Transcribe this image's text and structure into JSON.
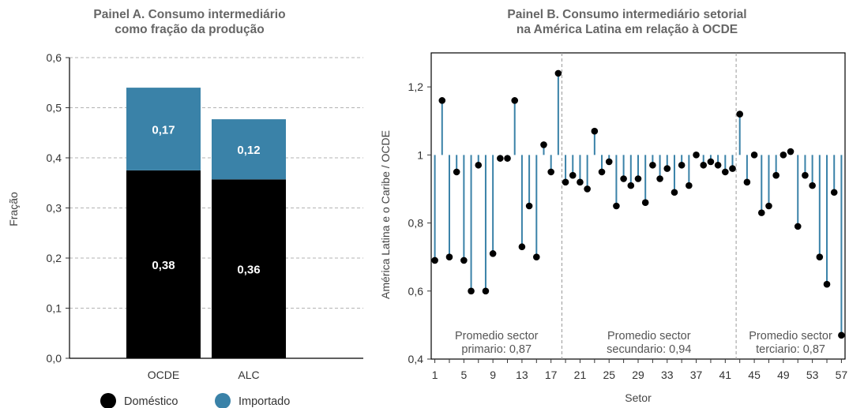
{
  "colors": {
    "domestic": "#000000",
    "imported": "#3a82a8",
    "stem": "#3a82a8",
    "grid": "#b3b3b3",
    "title": "#666666"
  },
  "chart_data": [
    {
      "type": "bar",
      "title": "Painel A. Consumo intermediário como fração da produção",
      "title_lines": [
        "Painel A. Consumo intermediário",
        "como fração da produção"
      ],
      "xlabel": "",
      "ylabel": "Fração",
      "ylim": [
        0,
        0.6
      ],
      "yticks": [
        "0,0",
        "0,1",
        "0,2",
        "0,3",
        "0,4",
        "0,5",
        "0,6"
      ],
      "stacked": true,
      "grid": true,
      "legend_position": "bottom",
      "categories": [
        "OCDE",
        "ALC"
      ],
      "series": [
        {
          "name": "Doméstico",
          "values": [
            0.375,
            0.357
          ],
          "labels": [
            "0,38",
            "0,36"
          ]
        },
        {
          "name": "Importado",
          "values": [
            0.165,
            0.12
          ],
          "labels": [
            "0,17",
            "0,12"
          ]
        }
      ]
    },
    {
      "type": "scatter",
      "style": "lollipop",
      "title": "Painel B. Consumo intermediário setorial na América Latina em relação à OCDE",
      "title_lines": [
        "Painel B. Consumo intermediário setorial",
        "na América Latina em relação à OCDE"
      ],
      "xlabel": "Setor",
      "ylabel": "América Latina e o Caribe / OCDE",
      "ylim": [
        0.4,
        1.3
      ],
      "xlim": [
        0.5,
        57.5
      ],
      "yticks": [
        "0,4",
        "0,6",
        "0,8",
        "1",
        "1,2"
      ],
      "xticks": [
        "1",
        "5",
        "9",
        "13",
        "17",
        "21",
        "25",
        "29",
        "33",
        "37",
        "41",
        "45",
        "49",
        "53",
        "57"
      ],
      "baseline": 1.0,
      "grid": false,
      "x": [
        1,
        2,
        3,
        4,
        5,
        6,
        7,
        8,
        9,
        10,
        11,
        12,
        13,
        14,
        15,
        16,
        17,
        18,
        19,
        20,
        21,
        22,
        23,
        24,
        25,
        26,
        27,
        28,
        29,
        30,
        31,
        32,
        33,
        34,
        35,
        36,
        37,
        38,
        39,
        40,
        41,
        42,
        43,
        44,
        45,
        46,
        47,
        48,
        49,
        50,
        51,
        52,
        53,
        54,
        55,
        56,
        57
      ],
      "values": [
        0.69,
        1.16,
        0.7,
        0.95,
        0.69,
        0.6,
        0.97,
        0.6,
        0.71,
        0.99,
        0.99,
        1.16,
        0.73,
        0.85,
        0.7,
        1.03,
        0.95,
        1.24,
        0.92,
        0.94,
        0.92,
        0.9,
        1.07,
        0.95,
        0.98,
        0.85,
        0.93,
        0.91,
        0.93,
        0.86,
        0.97,
        0.93,
        0.96,
        0.89,
        0.97,
        0.91,
        1.0,
        0.97,
        0.98,
        0.97,
        0.95,
        0.96,
        1.12,
        0.92,
        1.0,
        0.83,
        0.85,
        0.94,
        1.0,
        1.01,
        0.79,
        0.94,
        0.91,
        0.7,
        0.62,
        0.89,
        0.47
      ],
      "segments": [
        {
          "line1": "Promedio sector",
          "line2": "primario: 0,87",
          "from": 1,
          "to": 18
        },
        {
          "line1": "Promedio sector",
          "line2": "secundario: 0,94",
          "from": 19,
          "to": 42
        },
        {
          "line1": "Promedio sector",
          "line2": "terciario: 0,87",
          "from": 43,
          "to": 57
        }
      ]
    }
  ]
}
